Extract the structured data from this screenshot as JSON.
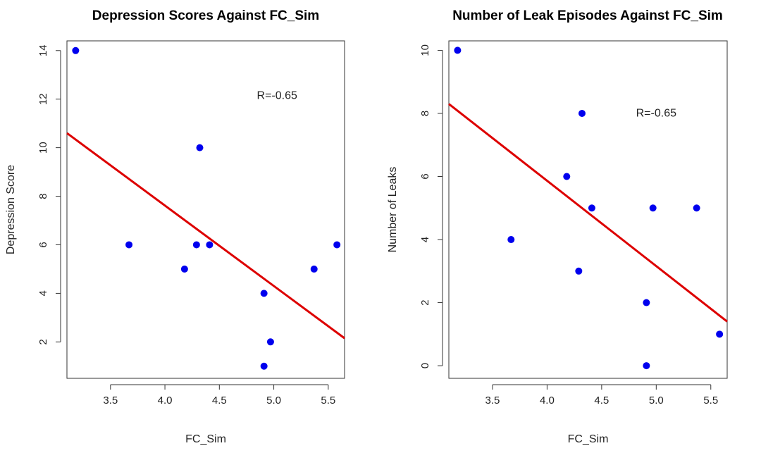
{
  "chart_data": [
    {
      "type": "scatter",
      "title": "Depression Scores Against FC_Sim",
      "xlabel": "FC_Sim",
      "ylabel": "Depression Score",
      "xlim": [
        3.1,
        5.65
      ],
      "ylim": [
        0.5,
        14.4
      ],
      "xticks": [
        3.5,
        4.0,
        4.5,
        5.0,
        5.5
      ],
      "yticks": [
        2,
        4,
        6,
        8,
        10,
        12,
        14
      ],
      "points": [
        {
          "x": 3.18,
          "y": 14
        },
        {
          "x": 3.67,
          "y": 6
        },
        {
          "x": 4.18,
          "y": 5
        },
        {
          "x": 4.29,
          "y": 6
        },
        {
          "x": 4.32,
          "y": 10
        },
        {
          "x": 4.41,
          "y": 6
        },
        {
          "x": 4.91,
          "y": 4
        },
        {
          "x": 4.91,
          "y": 1
        },
        {
          "x": 4.97,
          "y": 2
        },
        {
          "x": 5.37,
          "y": 5
        },
        {
          "x": 5.58,
          "y": 6
        }
      ],
      "regression": {
        "x1": 3.1,
        "y1": 10.6,
        "x2": 5.65,
        "y2": 2.15
      },
      "annotation": {
        "text": "R=-0.65",
        "x": 5.03,
        "y": 12.0
      },
      "point_color": "#0000ee",
      "line_color": "#dd0000",
      "grid": false
    },
    {
      "type": "scatter",
      "title": "Number of Leak Episodes Against FC_Sim",
      "xlabel": "FC_Sim",
      "ylabel": "Number of Leaks",
      "xlim": [
        3.1,
        5.65
      ],
      "ylim": [
        -0.4,
        10.3
      ],
      "xticks": [
        3.5,
        4.0,
        4.5,
        5.0,
        5.5
      ],
      "yticks": [
        0,
        2,
        4,
        6,
        8,
        10
      ],
      "points": [
        {
          "x": 3.18,
          "y": 10
        },
        {
          "x": 3.67,
          "y": 4
        },
        {
          "x": 4.18,
          "y": 6
        },
        {
          "x": 4.29,
          "y": 3
        },
        {
          "x": 4.32,
          "y": 8
        },
        {
          "x": 4.41,
          "y": 5
        },
        {
          "x": 4.91,
          "y": 2
        },
        {
          "x": 4.91,
          "y": 0
        },
        {
          "x": 4.97,
          "y": 5
        },
        {
          "x": 5.37,
          "y": 5
        },
        {
          "x": 5.58,
          "y": 1
        }
      ],
      "regression": {
        "x1": 3.1,
        "y1": 8.3,
        "x2": 5.65,
        "y2": 1.4
      },
      "annotation": {
        "text": "R=-0.65",
        "x": 5.0,
        "y": 7.9
      },
      "point_color": "#0000ee",
      "line_color": "#dd0000",
      "grid": false
    }
  ]
}
